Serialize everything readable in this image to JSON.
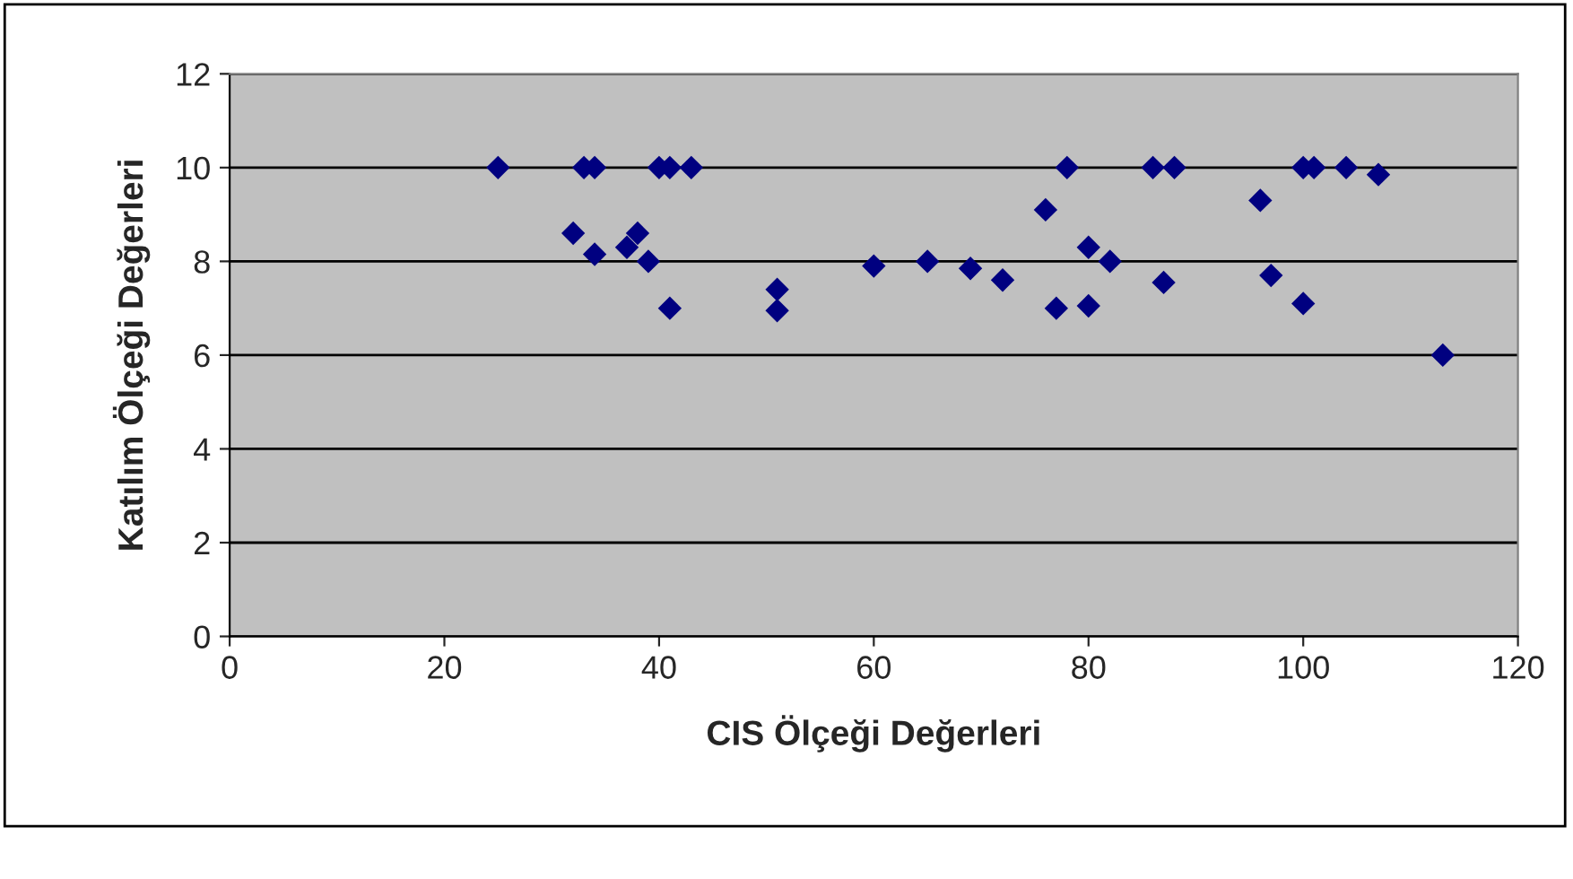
{
  "chart_data": {
    "type": "scatter",
    "xlabel": "CIS Ölçeği Değerleri",
    "ylabel": "Katılım Ölçeği Değerleri",
    "xlim": [
      0,
      120
    ],
    "xticks": [
      0,
      20,
      40,
      60,
      80,
      100,
      120
    ],
    "ylim": [
      0,
      12
    ],
    "yticks": [
      0,
      2,
      4,
      6,
      8,
      10,
      12
    ],
    "grid": "y",
    "marker": "diamond",
    "legend": false,
    "series": [
      {
        "color": "#000080",
        "x": [
          25,
          32,
          33,
          34,
          34,
          37,
          38,
          39,
          40,
          41,
          41,
          43,
          51,
          51,
          60,
          65,
          69,
          72,
          76,
          77,
          78,
          80,
          80,
          82,
          86,
          87,
          88,
          96,
          97,
          100,
          100,
          101,
          104,
          107,
          113
        ],
        "values": [
          10,
          8.6,
          10,
          10,
          8.15,
          8.3,
          8.6,
          8.0,
          10,
          10,
          7.0,
          10,
          7.4,
          6.95,
          7.9,
          8.0,
          7.85,
          7.6,
          9.1,
          7.0,
          10,
          8.3,
          7.05,
          8.0,
          10,
          7.55,
          10,
          9.3,
          7.7,
          10,
          7.1,
          10,
          10,
          9.85,
          6.0
        ]
      }
    ]
  }
}
